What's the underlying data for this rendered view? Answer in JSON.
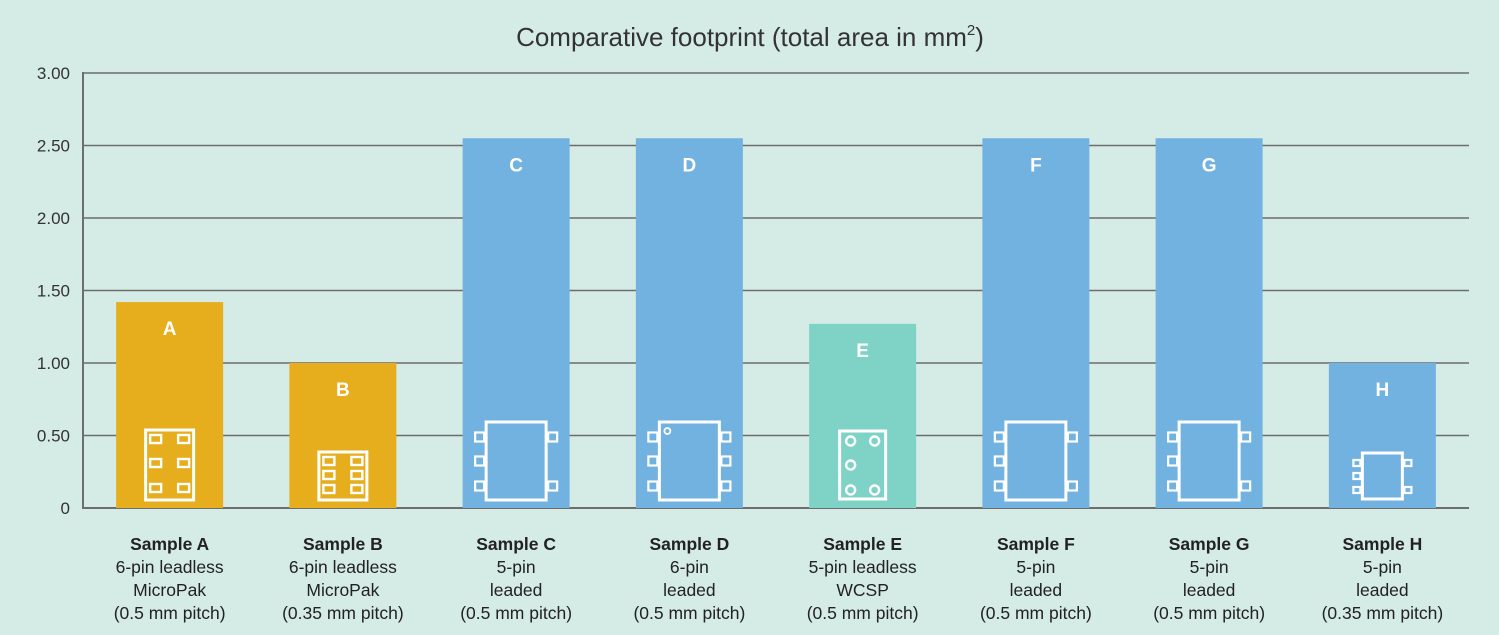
{
  "chart_data": {
    "type": "bar",
    "title": "Comparative footprint (total area in mm",
    "title_superscript": "2",
    "title_suffix": ")",
    "ylim": [
      0,
      3
    ],
    "yticks": [
      0,
      0.5,
      1.0,
      1.5,
      2.0,
      2.5,
      3.0
    ],
    "ytick_labels": [
      "0",
      "0.50",
      "1.00",
      "1.50",
      "2.00",
      "2.50",
      "3.00"
    ],
    "grid": true,
    "categories": [
      {
        "letter": "A",
        "name": "Sample A",
        "desc": [
          "6-pin leadless",
          "MicroPak",
          "(0.5 mm pitch)"
        ],
        "value": 1.42,
        "color": "#e6ae1c",
        "icon": "micropak-6-pin-icon"
      },
      {
        "letter": "B",
        "name": "Sample B",
        "desc": [
          "6-pin leadless",
          "MicroPak",
          "(0.35 mm pitch)"
        ],
        "value": 1.0,
        "color": "#e6ae1c",
        "icon": "micropak-6-pin-small-icon"
      },
      {
        "letter": "C",
        "name": "Sample C",
        "desc": [
          "5-pin",
          "leaded",
          "(0.5 mm pitch)"
        ],
        "value": 2.55,
        "color": "#72b2e0",
        "icon": "leaded-5-pin-icon"
      },
      {
        "letter": "D",
        "name": "Sample D",
        "desc": [
          "6-pin",
          "leaded",
          "(0.5 mm pitch)"
        ],
        "value": 2.55,
        "color": "#72b2e0",
        "icon": "leaded-6-pin-icon"
      },
      {
        "letter": "E",
        "name": "Sample E",
        "desc": [
          "5-pin leadless",
          "WCSP",
          "(0.5 mm pitch)"
        ],
        "value": 1.27,
        "color": "#7fd3c6",
        "icon": "wcsp-5-ball-icon"
      },
      {
        "letter": "F",
        "name": "Sample F",
        "desc": [
          "5-pin",
          "leaded",
          "(0.5 mm pitch)"
        ],
        "value": 2.55,
        "color": "#72b2e0",
        "icon": "leaded-5-pin-icon"
      },
      {
        "letter": "G",
        "name": "Sample G",
        "desc": [
          "5-pin",
          "leaded",
          "(0.5 mm pitch)"
        ],
        "value": 2.55,
        "color": "#72b2e0",
        "icon": "leaded-5-pin-icon"
      },
      {
        "letter": "H",
        "name": "Sample H",
        "desc": [
          "5-pin",
          "leaded",
          "(0.35 mm pitch)"
        ],
        "value": 1.0,
        "color": "#72b2e0",
        "icon": "leaded-5-pin-small-icon"
      }
    ]
  }
}
